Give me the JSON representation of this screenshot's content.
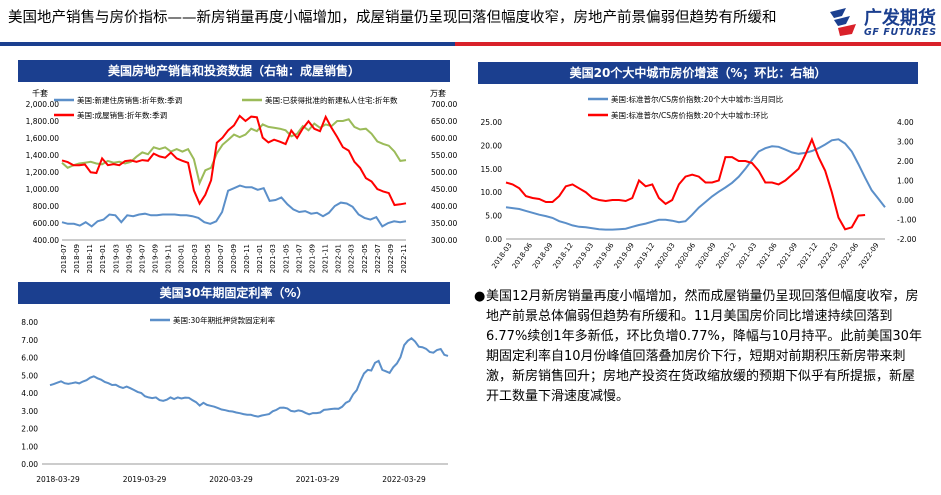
{
  "page": {
    "title": "美国地产销售与房价指标——新房销量再度小幅增加，成屋销量仍呈现回落但幅度收窄，房地产前景偏弱但趋势有所缓和",
    "logo_brand": "广发期货",
    "logo_sub": "GF FUTURES"
  },
  "bullet_text": "美国12月新房销量再度小幅增加，然而成屋销量仍呈现回落但幅度收窄，房地产前景总体偏弱但趋势有所缓和。11月美国房价同比增速持续回落到6.77%续创1年多新低，环比负增0.77%，降幅与10月持平。此前美国30年期固定利率自10月份峰值回落叠加房价下行，短期对前期积压新房带来刺激，新房销售回升；房地产投资在货政缩放缓的预期下似乎有所提振，新屋开工数量下滑速度减慢。",
  "colors": {
    "blue": "#5b8fc9",
    "green": "#9bbb59",
    "red": "#ff0000",
    "header": "#1b3f8f"
  },
  "chart_data": [
    {
      "type": "line",
      "title": "美国房地产销售和投资数据（右轴：成屋销售）",
      "ylabel_left": "千套",
      "ylabel_right": "万套",
      "ylim_left": [
        400,
        2000
      ],
      "yticks_left": [
        "400.00",
        "600.00",
        "800.00",
        "1,000.00",
        "1,200.00",
        "1,400.00",
        "1,600.00",
        "1,800.00",
        "2,000.00"
      ],
      "ylim_right": [
        300,
        700
      ],
      "yticks_right": [
        "300.00",
        "350.00",
        "400.00",
        "450.00",
        "500.00",
        "550.00",
        "600.00",
        "650.00",
        "700.00"
      ],
      "x_tick_labels": [
        "2018-07",
        "2018-09",
        "2018-11",
        "2019-01",
        "2019-03",
        "2019-05",
        "2019-07",
        "2019-09",
        "2019-11",
        "2020-01",
        "2020-03",
        "2020-05",
        "2020-07",
        "2020-09",
        "2020-11",
        "2021-01",
        "2021-03",
        "2021-05",
        "2021-07",
        "2021-09",
        "2021-11",
        "2022-01",
        "2022-03",
        "2022-05",
        "2022-07",
        "2022-09",
        "2022-11"
      ],
      "series": [
        {
          "name": "美国:新建住房销售:折年数:季调",
          "axis": "left",
          "color": "#5b8fc9",
          "values": [
            610,
            590,
            590,
            570,
            610,
            560,
            620,
            640,
            700,
            690,
            610,
            690,
            680,
            700,
            710,
            690,
            690,
            700,
            700,
            700,
            690,
            690,
            680,
            660,
            610,
            590,
            620,
            730,
            980,
            1010,
            1040,
            1020,
            1020,
            990,
            1010,
            860,
            870,
            900,
            820,
            760,
            730,
            740,
            710,
            720,
            680,
            720,
            800,
            840,
            830,
            790,
            700,
            660,
            640,
            670,
            560,
            600,
            620,
            610,
            620
          ]
        },
        {
          "name": "美国:已获得批准的新建私人住宅:折年数",
          "axis": "left",
          "color": "#9bbb59",
          "values": [
            1310,
            1250,
            1280,
            1300,
            1310,
            1320,
            1300,
            1290,
            1330,
            1310,
            1320,
            1300,
            1320,
            1380,
            1430,
            1410,
            1490,
            1470,
            1490,
            1440,
            1470,
            1440,
            1470,
            1350,
            1070,
            1220,
            1250,
            1420,
            1520,
            1580,
            1640,
            1610,
            1640,
            1710,
            1680,
            1760,
            1730,
            1720,
            1710,
            1690,
            1620,
            1650,
            1740,
            1690,
            1770,
            1720,
            1760,
            1740,
            1800,
            1800,
            1820,
            1730,
            1700,
            1710,
            1650,
            1560,
            1530,
            1510,
            1440,
            1330,
            1340
          ]
        },
        {
          "name": "美国:成屋销售:折年数:季调",
          "axis": "right",
          "color": "#ff0000",
          "values": [
            534,
            529,
            520,
            520,
            522,
            499,
            497,
            540,
            520,
            523,
            520,
            532,
            534,
            530,
            535,
            533,
            554,
            546,
            542,
            557,
            540,
            533,
            527,
            446,
            407,
            433,
            476,
            586,
            601,
            623,
            637,
            665,
            650,
            663,
            661,
            601,
            587,
            595,
            589,
            582,
            622,
            600,
            628,
            649,
            627,
            620,
            662,
            630,
            603,
            573,
            563,
            530,
            512,
            482,
            472,
            450,
            443,
            438,
            403,
            405,
            408
          ]
        }
      ]
    },
    {
      "type": "line",
      "title": "美国20个大中城市房价增速（%；环比：右轴）",
      "ylim_left": [
        0,
        25
      ],
      "yticks_left": [
        "0.00",
        "5.00",
        "10.00",
        "15.00",
        "20.00",
        "25.00"
      ],
      "ylim_right": [
        -2,
        4
      ],
      "yticks_right": [
        "-2.00",
        "-1.00",
        "0.00",
        "1.00",
        "2.00",
        "3.00",
        "4.00"
      ],
      "x_tick_labels": [
        "2018-03",
        "2018-06",
        "2018-09",
        "2018-12",
        "2019-03",
        "2019-06",
        "2019-09",
        "2019-12",
        "2020-03",
        "2020-06",
        "2020-09",
        "2020-12",
        "2021-03",
        "2021-06",
        "2021-09",
        "2021-12",
        "2022-03",
        "2022-06",
        "2022-09"
      ],
      "series": [
        {
          "name": "美国:标准普尔/CS房价指数:20个大中城市:当月同比",
          "axis": "left",
          "color": "#5b8fc9",
          "values": [
            6.8,
            6.6,
            6.4,
            6.0,
            5.6,
            5.2,
            4.9,
            4.5,
            3.8,
            3.4,
            2.9,
            2.6,
            2.5,
            2.3,
            2.1,
            2.0,
            2.0,
            2.1,
            2.2,
            2.6,
            3.0,
            3.3,
            3.7,
            4.1,
            4.1,
            3.9,
            3.6,
            3.8,
            5.2,
            6.7,
            7.9,
            9.1,
            10.1,
            11.0,
            12.0,
            13.3,
            15.0,
            16.9,
            18.7,
            19.4,
            19.8,
            19.7,
            19.1,
            18.5,
            18.2,
            18.4,
            18.8,
            19.4,
            20.2,
            21.1,
            21.3,
            20.4,
            18.7,
            16.0,
            13.1,
            10.4,
            8.6,
            6.8
          ]
        },
        {
          "name": "美国:标准普尔/CS房价指数:20个大中城市:环比",
          "axis": "right",
          "color": "#ff0000",
          "values": [
            0.9,
            0.8,
            0.6,
            0.2,
            0.1,
            0.05,
            -0.1,
            -0.1,
            0.2,
            0.7,
            0.8,
            0.6,
            0.4,
            0.1,
            0.0,
            -0.05,
            0.0,
            0.0,
            -0.05,
            0.1,
            1.0,
            0.7,
            0.8,
            0.1,
            -0.2,
            0.0,
            0.8,
            1.2,
            1.3,
            1.2,
            0.9,
            0.9,
            1.0,
            2.2,
            2.2,
            2.0,
            2.0,
            1.9,
            1.5,
            0.9,
            0.9,
            0.8,
            1.0,
            1.3,
            1.6,
            2.3,
            3.1,
            2.2,
            1.5,
            0.4,
            -0.9,
            -1.5,
            -1.4,
            -0.8,
            -0.77
          ]
        }
      ]
    },
    {
      "type": "line",
      "title": "美国30年期固定利率（%）",
      "ylim": [
        0,
        8
      ],
      "yticks": [
        "0.00",
        "1.00",
        "2.00",
        "3.00",
        "4.00",
        "5.00",
        "6.00",
        "7.00",
        "8.00"
      ],
      "x_tick_labels": [
        "2018-03-29",
        "2019-03-29",
        "2020-03-29",
        "2021-03-29",
        "2022-03-29"
      ],
      "series": [
        {
          "name": "美国:30年期抵押贷款固定利率",
          "axis": "left",
          "color": "#5b8fc9",
          "values": [
            4.44,
            4.5,
            4.58,
            4.66,
            4.55,
            4.52,
            4.55,
            4.6,
            4.54,
            4.65,
            4.72,
            4.86,
            4.94,
            4.83,
            4.75,
            4.62,
            4.55,
            4.45,
            4.46,
            4.35,
            4.28,
            4.36,
            4.27,
            4.17,
            4.06,
            4.0,
            3.82,
            3.75,
            3.71,
            3.75,
            3.6,
            3.56,
            3.62,
            3.75,
            3.66,
            3.75,
            3.69,
            3.74,
            3.73,
            3.6,
            3.48,
            3.29,
            3.45,
            3.33,
            3.28,
            3.23,
            3.15,
            3.07,
            3.03,
            2.98,
            2.96,
            2.9,
            2.86,
            2.81,
            2.78,
            2.77,
            2.71,
            2.67,
            2.73,
            2.77,
            2.81,
            2.97,
            3.05,
            3.17,
            3.18,
            3.13,
            2.99,
            2.96,
            3.02,
            2.98,
            2.88,
            2.8,
            2.87,
            2.87,
            2.9,
            3.05,
            3.07,
            3.1,
            3.12,
            3.11,
            3.22,
            3.45,
            3.55,
            3.92,
            4.16,
            4.67,
            5.1,
            5.3,
            5.27,
            5.7,
            5.81,
            5.3,
            5.22,
            5.13,
            5.45,
            5.66,
            6.02,
            6.7,
            6.94,
            7.08,
            6.9,
            6.61,
            6.58,
            6.49,
            6.31,
            6.27,
            6.42,
            6.48,
            6.15,
            6.09
          ]
        }
      ]
    }
  ]
}
